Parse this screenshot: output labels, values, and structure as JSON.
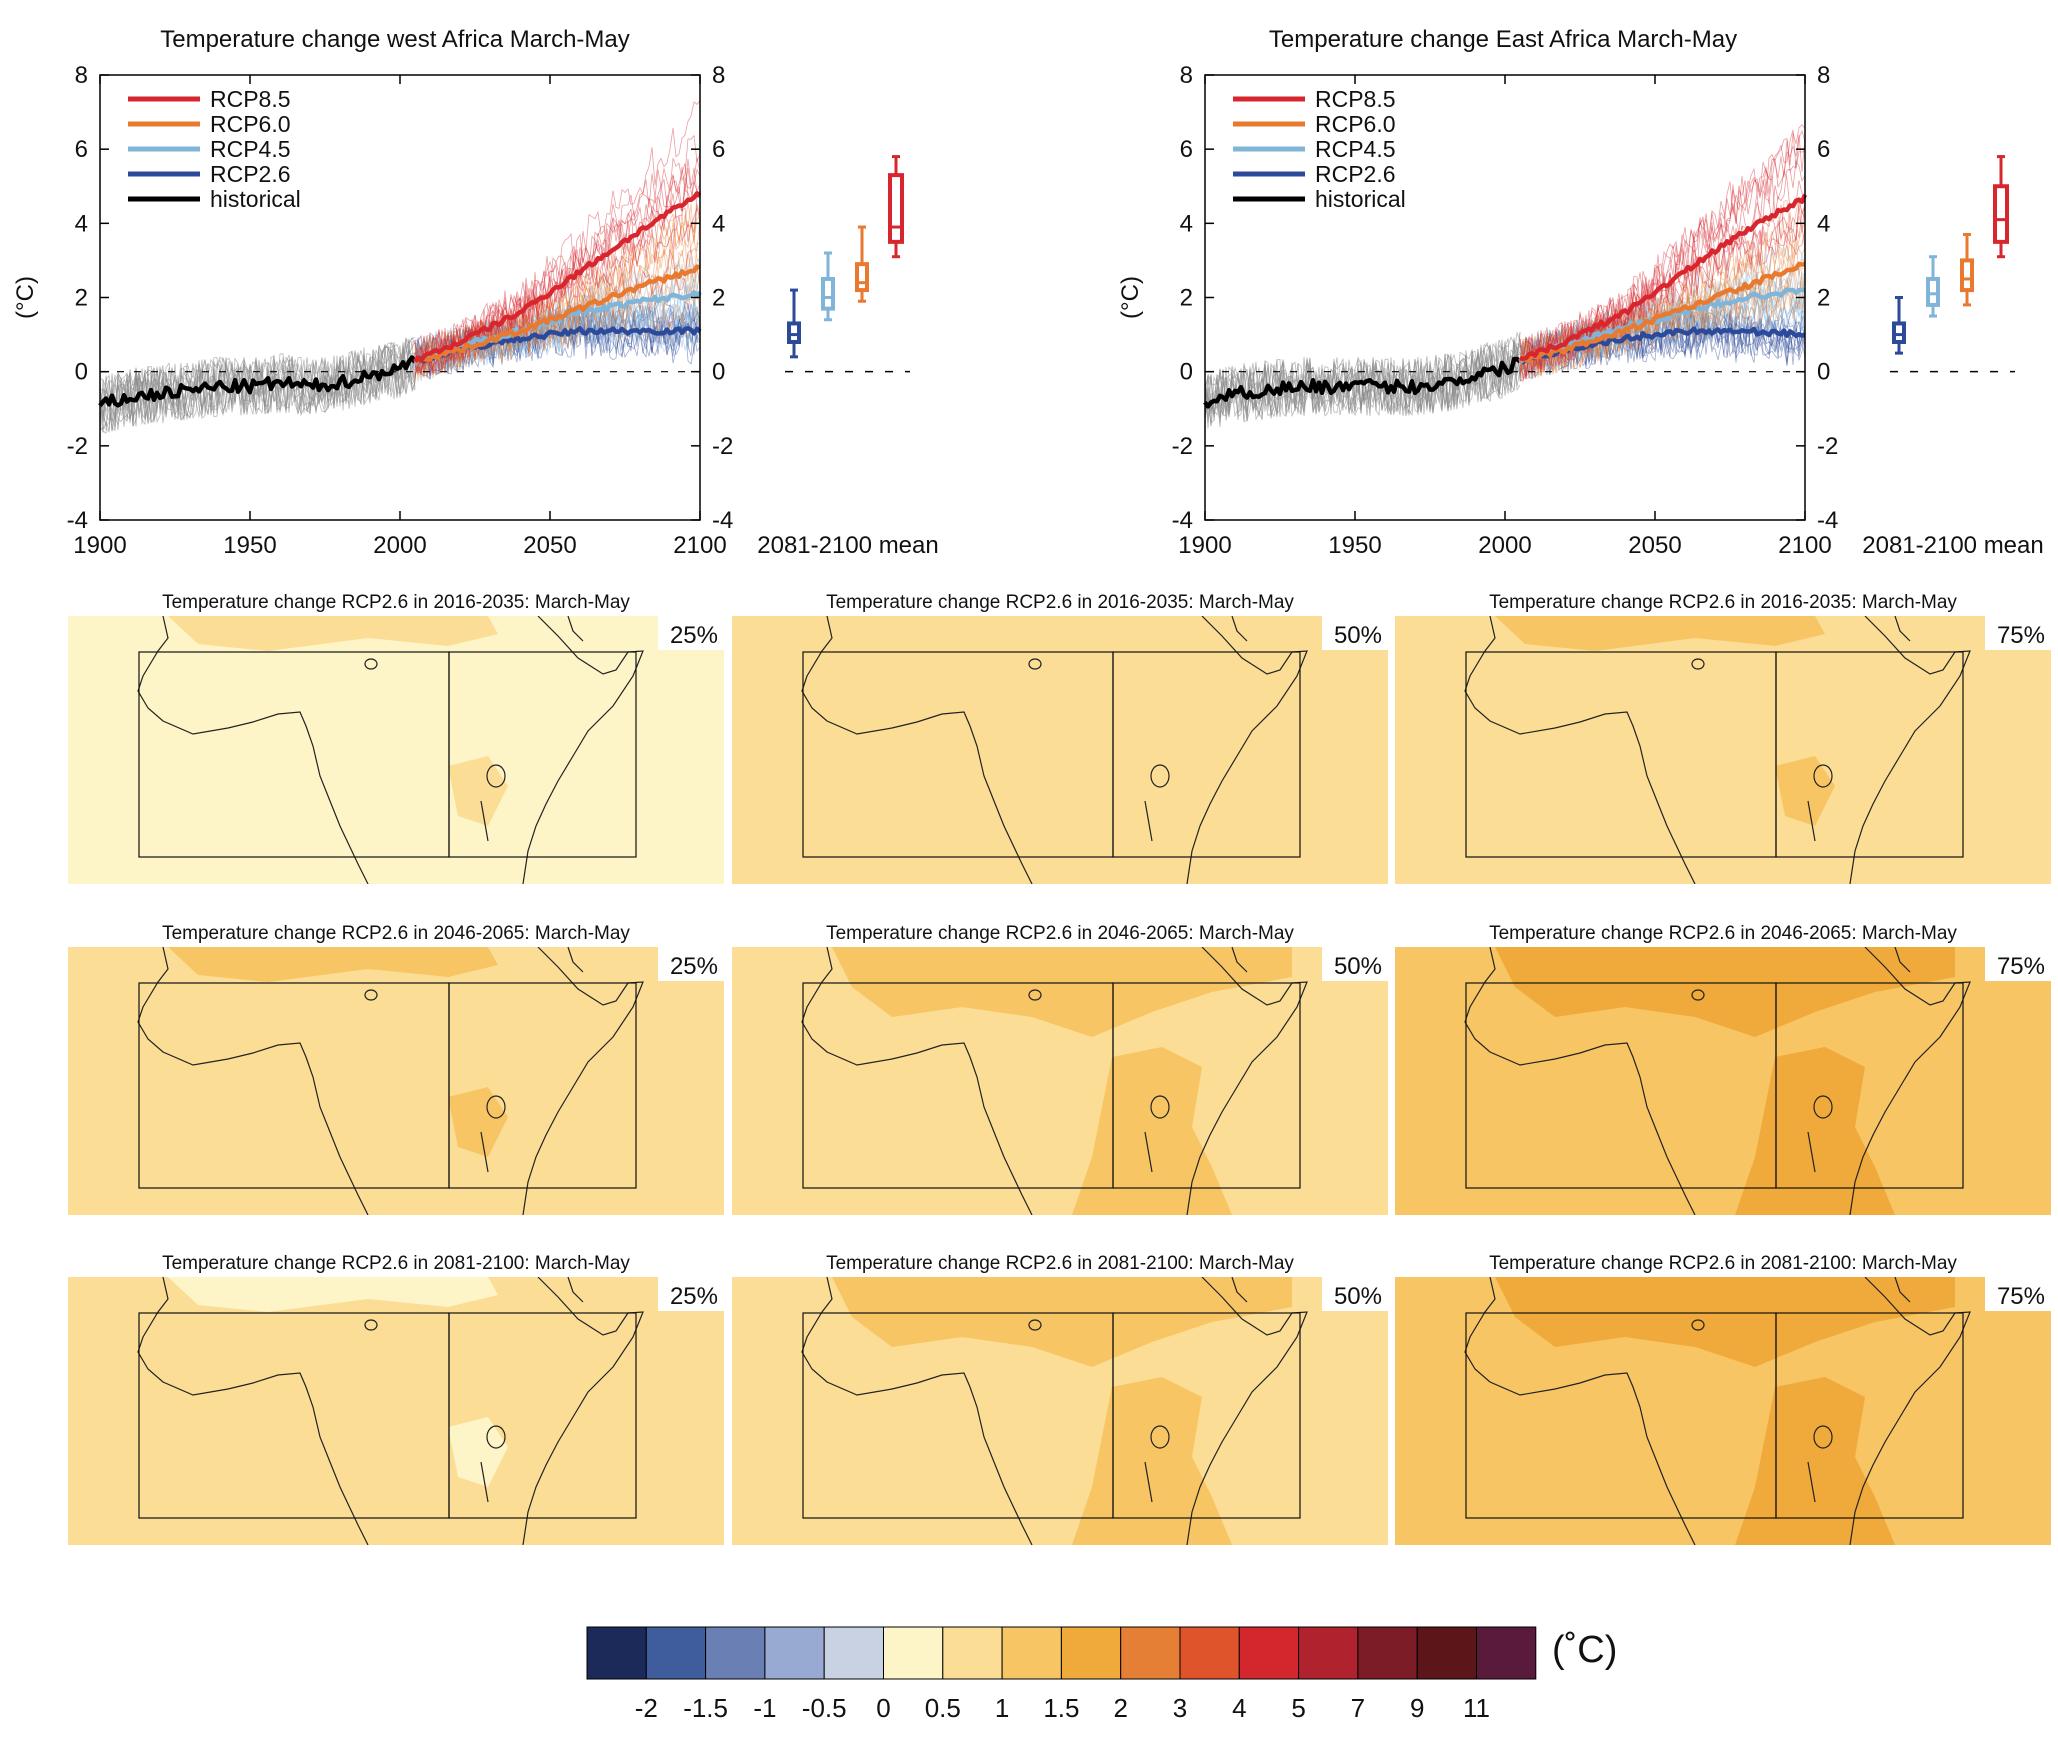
{
  "colors": {
    "rcp85": "#d7262e",
    "rcp60": "#e8792e",
    "rcp45": "#80b4d8",
    "rcp26": "#2c4a9a",
    "historical": "#000000",
    "historical_ensemble": "#8a8a8a",
    "map_frame": "#222222"
  },
  "chart_data": [
    {
      "type": "line",
      "title": "Temperature change west Africa March-May",
      "ylabel": "(°C)",
      "xlim": [
        1900,
        2100
      ],
      "ylim": [
        -4,
        8
      ],
      "x_ticks": [
        1900,
        1950,
        2000,
        2050,
        2100
      ],
      "y_ticks": [
        -4,
        -2,
        0,
        2,
        4,
        6,
        8
      ],
      "legend": [
        "RCP8.5",
        "RCP6.0",
        "RCP4.5",
        "RCP2.6",
        "historical"
      ],
      "legend_position": "top-left",
      "series": [
        {
          "name": "historical",
          "color_key": "historical",
          "x": [
            1900,
            1910,
            1920,
            1930,
            1940,
            1950,
            1960,
            1970,
            1980,
            1990,
            2000,
            2005
          ],
          "y": [
            -0.9,
            -0.7,
            -0.6,
            -0.5,
            -0.4,
            -0.4,
            -0.3,
            -0.4,
            -0.3,
            -0.1,
            0.1,
            0.3
          ]
        },
        {
          "name": "RCP2.6",
          "color_key": "rcp26",
          "x": [
            2005,
            2020,
            2040,
            2060,
            2080,
            2100
          ],
          "y": [
            0.3,
            0.6,
            0.9,
            1.1,
            1.1,
            1.1
          ]
        },
        {
          "name": "RCP4.5",
          "color_key": "rcp45",
          "x": [
            2005,
            2020,
            2040,
            2060,
            2080,
            2100
          ],
          "y": [
            0.3,
            0.7,
            1.1,
            1.6,
            1.9,
            2.1
          ]
        },
        {
          "name": "RCP6.0",
          "color_key": "rcp60",
          "x": [
            2005,
            2020,
            2040,
            2060,
            2080,
            2100
          ],
          "y": [
            0.3,
            0.6,
            1.1,
            1.7,
            2.3,
            2.8
          ]
        },
        {
          "name": "RCP8.5",
          "color_key": "rcp85",
          "x": [
            2005,
            2020,
            2040,
            2060,
            2080,
            2100
          ],
          "y": [
            0.3,
            0.8,
            1.6,
            2.7,
            3.8,
            4.8
          ]
        }
      ],
      "box_panel": {
        "label": "2081-2100 mean",
        "boxes": [
          {
            "scenario": "RCP2.6",
            "color_key": "rcp26",
            "min": 0.4,
            "q1": 0.8,
            "median": 1.0,
            "q3": 1.3,
            "max": 2.2
          },
          {
            "scenario": "RCP4.5",
            "color_key": "rcp45",
            "min": 1.4,
            "q1": 1.7,
            "median": 2.0,
            "q3": 2.5,
            "max": 3.2
          },
          {
            "scenario": "RCP6.0",
            "color_key": "rcp60",
            "min": 1.9,
            "q1": 2.2,
            "median": 2.4,
            "q3": 2.9,
            "max": 3.9
          },
          {
            "scenario": "RCP8.5",
            "color_key": "rcp85",
            "min": 3.1,
            "q1": 3.5,
            "median": 3.9,
            "q3": 5.3,
            "max": 5.8
          }
        ]
      }
    },
    {
      "type": "line",
      "title": "Temperature change East Africa March-May",
      "ylabel": "(°C)",
      "xlim": [
        1900,
        2100
      ],
      "ylim": [
        -4,
        8
      ],
      "x_ticks": [
        1900,
        1950,
        2000,
        2050,
        2100
      ],
      "y_ticks": [
        -4,
        -2,
        0,
        2,
        4,
        6,
        8
      ],
      "legend": [
        "RCP8.5",
        "RCP6.0",
        "RCP4.5",
        "RCP2.6",
        "historical"
      ],
      "legend_position": "top-left",
      "series": [
        {
          "name": "historical",
          "color_key": "historical",
          "x": [
            1900,
            1910,
            1920,
            1930,
            1940,
            1950,
            1960,
            1970,
            1980,
            1990,
            2000,
            2005
          ],
          "y": [
            -0.8,
            -0.6,
            -0.5,
            -0.4,
            -0.4,
            -0.4,
            -0.4,
            -0.4,
            -0.3,
            -0.1,
            0.1,
            0.3
          ]
        },
        {
          "name": "RCP2.6",
          "color_key": "rcp26",
          "x": [
            2005,
            2020,
            2040,
            2060,
            2080,
            2100
          ],
          "y": [
            0.3,
            0.6,
            0.9,
            1.1,
            1.1,
            1.0
          ]
        },
        {
          "name": "RCP4.5",
          "color_key": "rcp45",
          "x": [
            2005,
            2020,
            2040,
            2060,
            2080,
            2100
          ],
          "y": [
            0.3,
            0.7,
            1.2,
            1.6,
            2.0,
            2.2
          ]
        },
        {
          "name": "RCP6.0",
          "color_key": "rcp60",
          "x": [
            2005,
            2020,
            2040,
            2060,
            2080,
            2100
          ],
          "y": [
            0.3,
            0.6,
            1.1,
            1.7,
            2.3,
            2.9
          ]
        },
        {
          "name": "RCP8.5",
          "color_key": "rcp85",
          "x": [
            2005,
            2020,
            2040,
            2060,
            2080,
            2100
          ],
          "y": [
            0.3,
            0.8,
            1.6,
            2.7,
            3.8,
            4.7
          ]
        }
      ],
      "box_panel": {
        "label": "2081-2100 mean",
        "boxes": [
          {
            "scenario": "RCP2.6",
            "color_key": "rcp26",
            "min": 0.5,
            "q1": 0.8,
            "median": 1.0,
            "q3": 1.3,
            "max": 2.0
          },
          {
            "scenario": "RCP4.5",
            "color_key": "rcp45",
            "min": 1.5,
            "q1": 1.8,
            "median": 2.1,
            "q3": 2.5,
            "max": 3.1
          },
          {
            "scenario": "RCP6.0",
            "color_key": "rcp60",
            "min": 1.8,
            "q1": 2.2,
            "median": 2.5,
            "q3": 3.0,
            "max": 3.7
          },
          {
            "scenario": "RCP8.5",
            "color_key": "rcp85",
            "min": 3.1,
            "q1": 3.5,
            "median": 4.1,
            "q3": 5.0,
            "max": 5.8
          }
        ]
      }
    },
    {
      "type": "heatmap",
      "subtype": "map-grid",
      "maps": [
        {
          "title": "Temperature change RCP2.6 in 2016-2035: March-May",
          "percentile": "25%",
          "base_bin": 5,
          "patch_bin": 6,
          "patch_extent": "small"
        },
        {
          "title": "Temperature change RCP2.6 in 2016-2035: March-May",
          "percentile": "50%",
          "base_bin": 6,
          "patch_bin": 6,
          "patch_extent": "none"
        },
        {
          "title": "Temperature change RCP2.6 in 2016-2035: March-May",
          "percentile": "75%",
          "base_bin": 6,
          "patch_bin": 7,
          "patch_extent": "small"
        },
        {
          "title": "Temperature change RCP2.6 in 2046-2065: March-May",
          "percentile": "25%",
          "base_bin": 6,
          "patch_bin": 7,
          "patch_extent": "small"
        },
        {
          "title": "Temperature change RCP2.6 in 2046-2065: March-May",
          "percentile": "50%",
          "base_bin": 6,
          "patch_bin": 7,
          "patch_extent": "medium"
        },
        {
          "title": "Temperature change RCP2.6 in 2046-2065: March-May",
          "percentile": "75%",
          "base_bin": 7,
          "patch_bin": 8,
          "patch_extent": "medium"
        },
        {
          "title": "Temperature change RCP2.6 in 2081-2100: March-May",
          "percentile": "25%",
          "base_bin": 6,
          "patch_bin": 5,
          "patch_extent": "small"
        },
        {
          "title": "Temperature change RCP2.6 in 2081-2100: March-May",
          "percentile": "50%",
          "base_bin": 6,
          "patch_bin": 7,
          "patch_extent": "medium"
        },
        {
          "title": "Temperature change RCP2.6 in 2081-2100: March-May",
          "percentile": "75%",
          "base_bin": 7,
          "patch_bin": 8,
          "patch_extent": "medium"
        }
      ]
    }
  ],
  "colorbar": {
    "unit": "(˚C)",
    "colors": [
      "#1c2a5a",
      "#3f5c9c",
      "#6a7fb4",
      "#98a9d2",
      "#c9d2e3",
      "#fdf4c8",
      "#fbdd95",
      "#f7c564",
      "#f0a93b",
      "#e67f36",
      "#e0542b",
      "#d4262d",
      "#b0222e",
      "#7c1c26",
      "#5c1518",
      "#5a1a3c"
    ],
    "labels": [
      "-2",
      "-1.5",
      "-1",
      "-0.5",
      "0",
      "0.5",
      "1",
      "1.5",
      "2",
      "3",
      "4",
      "5",
      "7",
      "9",
      "11"
    ]
  }
}
